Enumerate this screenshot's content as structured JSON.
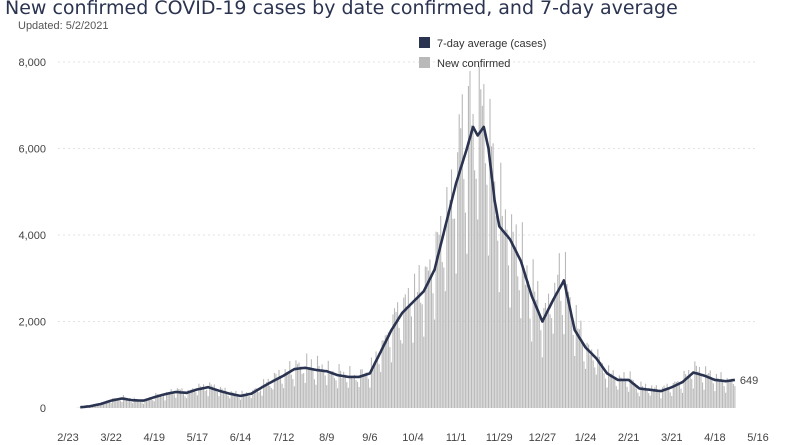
{
  "title": "New confirmed COVID-19 cases by date confirmed, and 7-day average",
  "updated": "Updated: 5/2/2021",
  "chart_data": {
    "type": "bar+line",
    "title": "New confirmed COVID-19 cases by date confirmed, and 7-day average",
    "xlabel": "",
    "ylabel": "",
    "ylim": [
      0,
      8000
    ],
    "y_ticks": [
      "0",
      "2,000",
      "4,000",
      "6,000",
      "8,000"
    ],
    "y_tick_values": [
      0,
      2000,
      4000,
      6000,
      8000
    ],
    "x_ticks": [
      "2/23",
      "3/22",
      "4/19",
      "5/17",
      "6/14",
      "7/12",
      "8/9",
      "9/6",
      "10/4",
      "11/1",
      "11/29",
      "12/27",
      "1/24",
      "2/21",
      "3/21",
      "4/18",
      "5/16"
    ],
    "x_tick_day_index": [
      0,
      28,
      56,
      84,
      112,
      140,
      168,
      196,
      224,
      252,
      280,
      308,
      336,
      364,
      392,
      420,
      448
    ],
    "x_start_date": "2020-02-23",
    "data_day_range": [
      0,
      433
    ],
    "legend": {
      "line_label": "7-day average (cases)",
      "bar_label": "New confirmed",
      "position": "top-center"
    },
    "line_color": "#2a3350",
    "bar_color": "#b9b9b9",
    "last_value_label": "649",
    "series_7day_avg": {
      "name": "7-day average (cases)",
      "days": [
        14,
        21,
        28,
        35,
        42,
        49,
        56,
        63,
        70,
        77,
        84,
        91,
        98,
        105,
        112,
        119,
        126,
        133,
        140,
        147,
        154,
        161,
        168,
        175,
        182,
        189,
        196,
        203,
        210,
        217,
        224,
        231,
        238,
        245,
        252,
        259,
        263,
        266,
        270,
        273,
        277,
        280,
        287,
        294,
        301,
        308,
        315,
        322,
        329,
        336,
        343,
        350,
        357,
        364,
        371,
        378,
        385,
        392,
        399,
        406,
        413,
        420,
        427,
        433
      ],
      "values": [
        40,
        90,
        170,
        220,
        180,
        170,
        250,
        320,
        370,
        350,
        430,
        480,
        400,
        330,
        280,
        330,
        480,
        620,
        750,
        900,
        930,
        880,
        850,
        760,
        720,
        720,
        800,
        1300,
        1800,
        2200,
        2450,
        2700,
        3200,
        4200,
        5200,
        6000,
        6500,
        6300,
        6500,
        6000,
        4800,
        4200,
        3900,
        3400,
        2600,
        2000,
        2500,
        2950,
        1800,
        1400,
        1150,
        800,
        650,
        650,
        450,
        420,
        390,
        480,
        600,
        820,
        750,
        650,
        620,
        649
      ]
    },
    "series_new_confirmed_note": "daily bars; approximately 7-day average with weekday variation, peak near 7,800 in mid-November"
  }
}
